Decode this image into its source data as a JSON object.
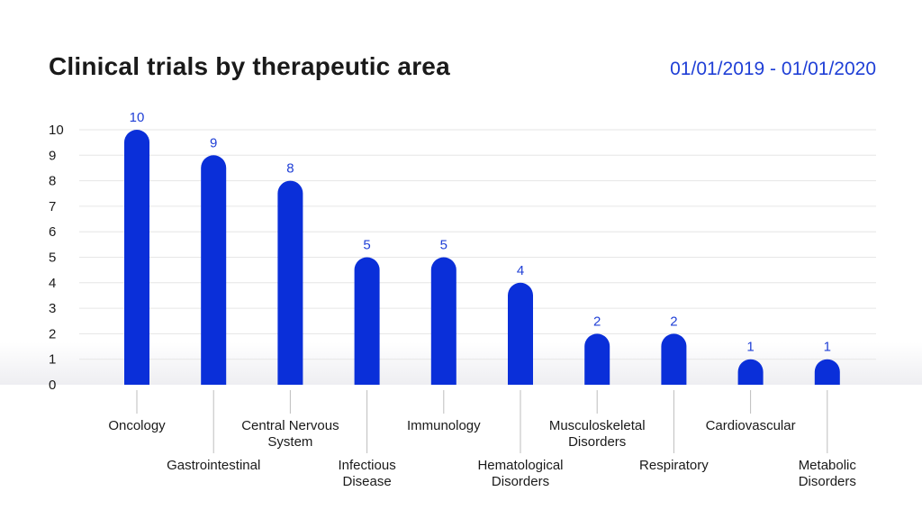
{
  "header": {
    "title": "Clinical trials by therapeutic area",
    "date_range": "01/01/2019 - 01/01/2020"
  },
  "colors": {
    "bar": "#0a2fd9",
    "value_label": "#1f3fd6",
    "grid": "#e6e6e6",
    "connector": "#bdbdbd"
  },
  "chart_data": {
    "type": "bar",
    "title": "Clinical trials by therapeutic area",
    "subtitle": "01/01/2019 - 01/01/2020",
    "xlabel": "",
    "ylabel": "",
    "ylim": [
      0,
      10
    ],
    "yticks": [
      0,
      1,
      2,
      3,
      4,
      5,
      6,
      7,
      8,
      9,
      10
    ],
    "grid": true,
    "legend": "none",
    "categories": [
      "Oncology",
      "Gastrointestinal",
      "Central Nervous System",
      "Infectious Disease",
      "Immunology",
      "Hematological Disorders",
      "Musculoskeletal Disorders",
      "Respiratory",
      "Cardiovascular",
      "Metabolic Disorders"
    ],
    "category_label_lines": [
      [
        "Oncology"
      ],
      [
        "Gastrointestinal"
      ],
      [
        "Central Nervous",
        "System"
      ],
      [
        "Infectious",
        "Disease"
      ],
      [
        "Immunology"
      ],
      [
        "Hematological",
        "Disorders"
      ],
      [
        "Musculoskeletal",
        "Disorders"
      ],
      [
        "Respiratory"
      ],
      [
        "Cardiovascular"
      ],
      [
        "Metabolic",
        "Disorders"
      ]
    ],
    "values": [
      10,
      9,
      8,
      5,
      5,
      4,
      2,
      2,
      1,
      1
    ],
    "data_labels": [
      "10",
      "9",
      "8",
      "5",
      "5",
      "4",
      "2",
      "2",
      "1",
      "1"
    ]
  }
}
